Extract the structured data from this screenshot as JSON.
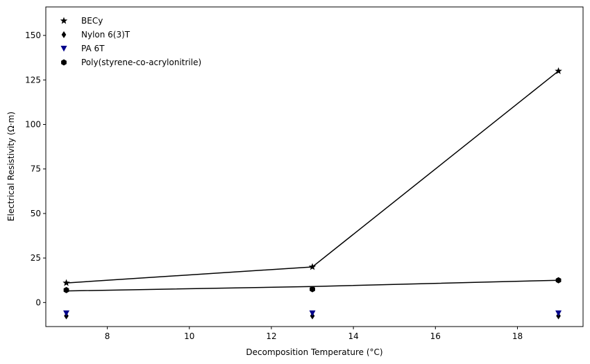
{
  "chart_data": {
    "type": "scatter",
    "xlabel": "Decomposition Temperature (°C)",
    "ylabel": "Electrical Resistivity (Ω·m)",
    "xlim": [
      6.5,
      19.6
    ],
    "ylim": [
      -13.5,
      166
    ],
    "xticks": [
      8,
      10,
      12,
      14,
      16,
      18
    ],
    "yticks": [
      0,
      25,
      50,
      75,
      100,
      125,
      150
    ],
    "grid": false,
    "legend_position": "top-left",
    "series": [
      {
        "name": "BECy",
        "marker": "star",
        "color": "#000000",
        "x": [
          7,
          13,
          19
        ],
        "y": [
          11,
          20,
          130
        ]
      },
      {
        "name": "Nylon 6(3)T",
        "marker": "thin-diamond",
        "color": "#000000",
        "x": [
          7,
          13,
          19
        ],
        "y": [
          -7.5,
          -7.5,
          -7.5
        ]
      },
      {
        "name": "PA 6T",
        "marker": "triangle-down",
        "color": "#00008b",
        "x": [
          7,
          13,
          19
        ],
        "y": [
          -6,
          -6,
          -6
        ]
      },
      {
        "name": "Poly(styrene-co-acrylonitrile)",
        "marker": "hexagon",
        "color": "#000000",
        "x": [
          7,
          13,
          19
        ],
        "y": [
          7,
          7.5,
          12.5
        ]
      }
    ],
    "lines": [
      {
        "x": [
          7,
          13,
          19
        ],
        "y": [
          11,
          20,
          130
        ],
        "color": "#000000"
      },
      {
        "x": [
          7,
          13,
          19
        ],
        "y": [
          6.5,
          9,
          12.5
        ],
        "color": "#000000"
      }
    ]
  }
}
